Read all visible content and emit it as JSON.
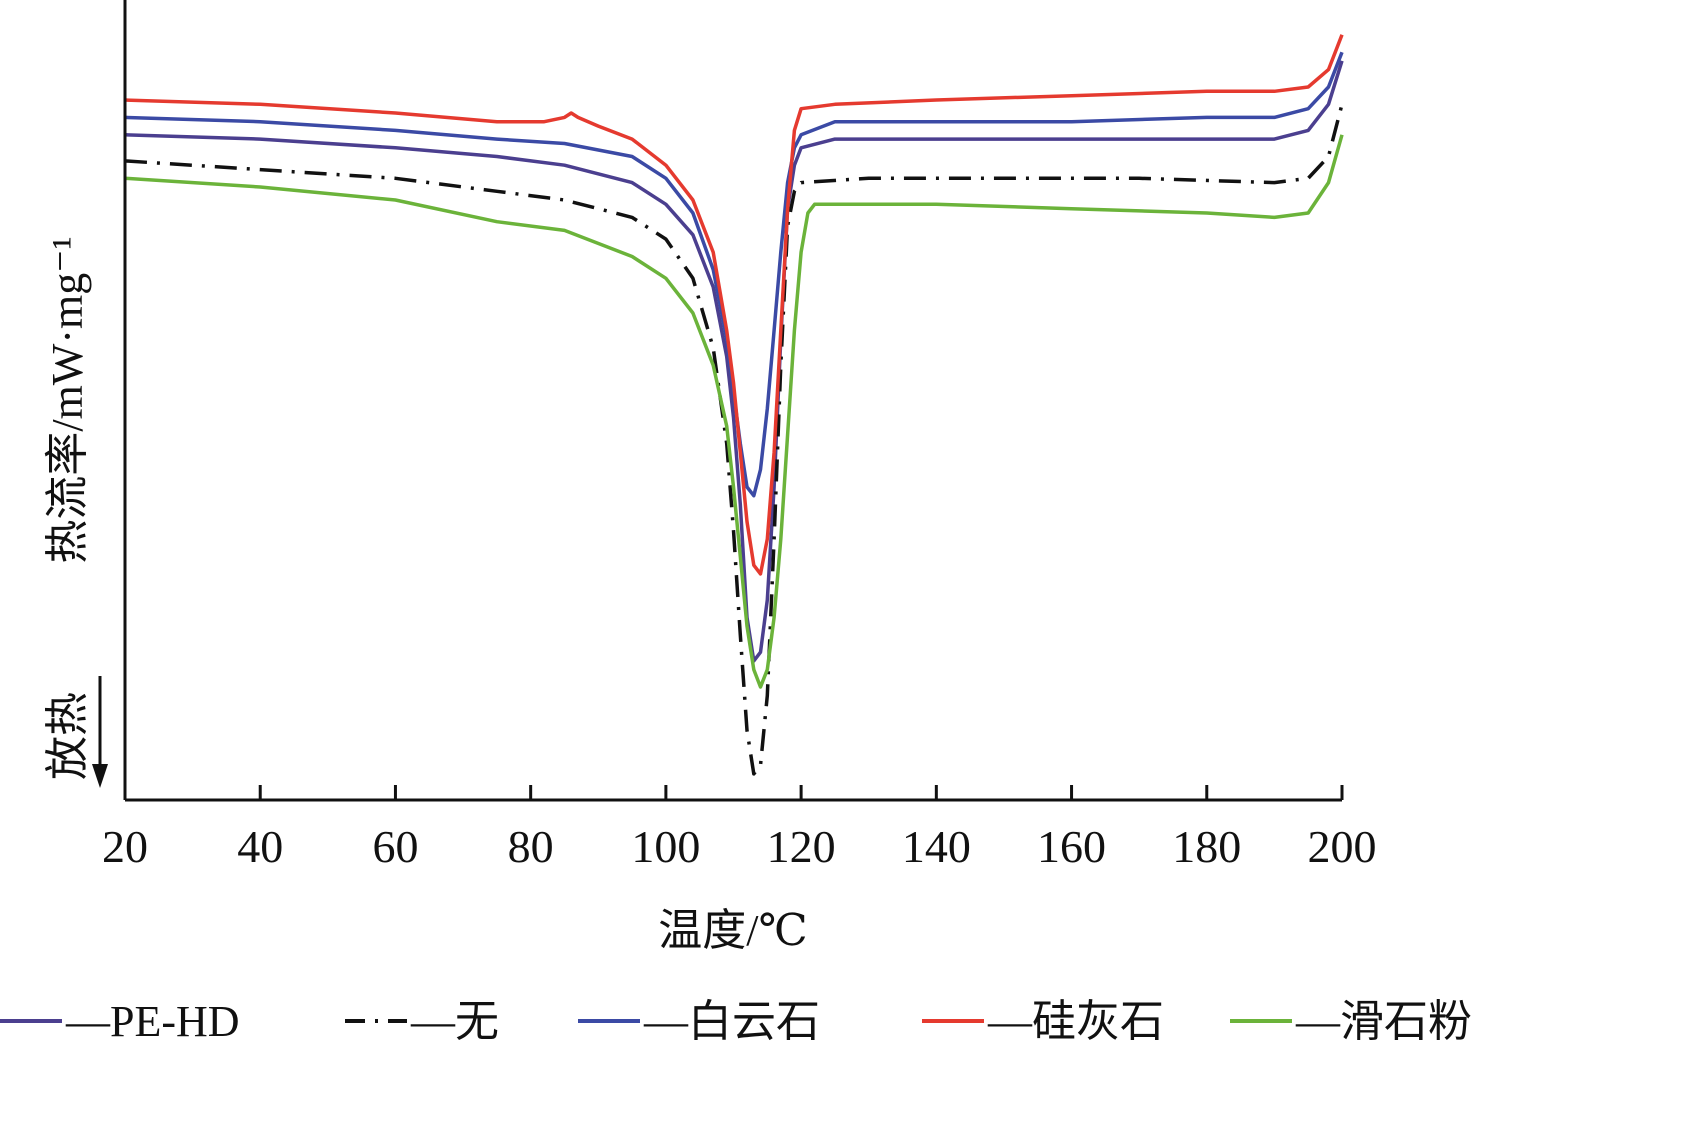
{
  "chart_data": {
    "type": "line",
    "xlabel": "温度/℃",
    "ylabel": "热流率/mW·mg⁻¹",
    "y_direction_note": "放热",
    "xlim": [
      20,
      200
    ],
    "ylim": [
      -8.6,
      0.6
    ],
    "xticks": [
      20,
      40,
      60,
      80,
      100,
      120,
      140,
      160,
      180,
      200
    ],
    "grid": false,
    "legend_position": "bottom",
    "series": [
      {
        "name": "PE-HD",
        "color": "#4b3f8f",
        "style": "solid",
        "x": [
          20,
          40,
          60,
          75,
          85,
          95,
          100,
          104,
          107,
          109,
          110,
          111,
          112,
          113,
          114,
          115,
          116,
          117,
          118,
          119,
          120,
          125,
          140,
          160,
          180,
          190,
          195,
          198,
          200
        ],
        "y": [
          -0.95,
          -1.0,
          -1.1,
          -1.2,
          -1.3,
          -1.5,
          -1.75,
          -2.1,
          -2.7,
          -3.5,
          -4.2,
          -5.2,
          -6.5,
          -7.0,
          -6.9,
          -6.3,
          -5.0,
          -3.3,
          -1.8,
          -1.3,
          -1.1,
          -1.0,
          -1.0,
          -1.0,
          -1.0,
          -1.0,
          -0.9,
          -0.6,
          -0.1
        ]
      },
      {
        "name": "无",
        "color": "#111111",
        "style": "dashdot",
        "x": [
          20,
          40,
          60,
          75,
          85,
          95,
          100,
          104,
          107,
          109,
          110,
          111,
          112,
          113,
          114,
          115,
          116,
          117,
          118,
          119,
          120,
          130,
          150,
          170,
          190,
          195,
          198,
          200
        ],
        "y": [
          -1.25,
          -1.35,
          -1.45,
          -1.6,
          -1.7,
          -1.9,
          -2.15,
          -2.6,
          -3.4,
          -4.5,
          -5.5,
          -6.7,
          -7.8,
          -8.3,
          -8.2,
          -7.4,
          -5.6,
          -3.6,
          -2.0,
          -1.6,
          -1.5,
          -1.45,
          -1.45,
          -1.45,
          -1.5,
          -1.45,
          -1.2,
          -0.6
        ]
      },
      {
        "name": "白云石",
        "color": "#3b4aa5",
        "style": "solid",
        "x": [
          20,
          40,
          60,
          75,
          85,
          95,
          100,
          104,
          107,
          109,
          110,
          111,
          112,
          113,
          114,
          115,
          116,
          117,
          118,
          119,
          120,
          125,
          140,
          160,
          180,
          190,
          195,
          198,
          200
        ],
        "y": [
          -0.75,
          -0.8,
          -0.9,
          -1.0,
          -1.05,
          -1.2,
          -1.45,
          -1.85,
          -2.5,
          -3.3,
          -3.9,
          -4.5,
          -5.0,
          -5.1,
          -4.8,
          -4.1,
          -3.2,
          -2.3,
          -1.5,
          -1.1,
          -0.95,
          -0.8,
          -0.8,
          -0.8,
          -0.75,
          -0.75,
          -0.65,
          -0.4,
          0.0
        ]
      },
      {
        "name": "硅灰石",
        "color": "#e53a2f",
        "style": "solid",
        "x": [
          20,
          40,
          60,
          75,
          82,
          85,
          86,
          87,
          90,
          95,
          100,
          104,
          107,
          109,
          110,
          111,
          112,
          113,
          114,
          115,
          116,
          117,
          118,
          119,
          120,
          125,
          140,
          160,
          180,
          190,
          195,
          198,
          200
        ],
        "y": [
          -0.55,
          -0.6,
          -0.7,
          -0.8,
          -0.8,
          -0.75,
          -0.7,
          -0.75,
          -0.85,
          -1.0,
          -1.3,
          -1.7,
          -2.3,
          -3.2,
          -3.8,
          -4.6,
          -5.4,
          -5.9,
          -6.0,
          -5.6,
          -4.6,
          -3.2,
          -1.8,
          -0.9,
          -0.65,
          -0.6,
          -0.55,
          -0.5,
          -0.45,
          -0.45,
          -0.4,
          -0.2,
          0.2
        ]
      },
      {
        "name": "滑石粉",
        "color": "#6bb33a",
        "style": "solid",
        "x": [
          20,
          40,
          60,
          75,
          85,
          95,
          100,
          104,
          107,
          109,
          110,
          111,
          112,
          113,
          114,
          115,
          116,
          117,
          118,
          119,
          120,
          121,
          122,
          140,
          160,
          180,
          190,
          195,
          198,
          200
        ],
        "y": [
          -1.45,
          -1.55,
          -1.7,
          -1.95,
          -2.05,
          -2.35,
          -2.6,
          -3.0,
          -3.6,
          -4.3,
          -5.0,
          -5.8,
          -6.6,
          -7.1,
          -7.3,
          -7.1,
          -6.5,
          -5.6,
          -4.4,
          -3.2,
          -2.3,
          -1.85,
          -1.75,
          -1.75,
          -1.8,
          -1.85,
          -1.9,
          -1.85,
          -1.5,
          -0.95
        ]
      }
    ]
  }
}
